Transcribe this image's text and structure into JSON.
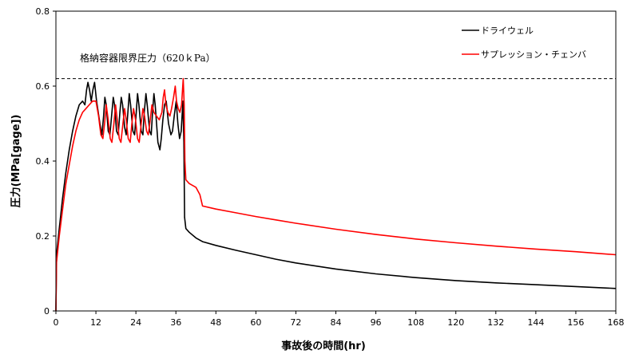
{
  "chart_data": {
    "type": "line",
    "title": "",
    "xlabel": "事故後の時間(hr)",
    "ylabel": "圧力(MPa[gage])",
    "xlim": [
      0,
      168
    ],
    "ylim": [
      0,
      0.8
    ],
    "xticks": [
      0,
      12,
      24,
      36,
      48,
      60,
      72,
      84,
      96,
      108,
      120,
      132,
      144,
      156,
      168
    ],
    "yticks": [
      0,
      0.2,
      0.4,
      0.6,
      0.8
    ],
    "ytick_labels": [
      "0",
      "0.2",
      "0.4",
      "0.6",
      "0.8"
    ],
    "grid": false,
    "legend_position": "top-right",
    "reference_line": {
      "y": 0.62,
      "label": "格納容器限界圧力（620ｋPa）",
      "style": "dashed"
    },
    "series": [
      {
        "name": "ドライウェル",
        "color": "#000000",
        "points": [
          [
            0,
            0.0
          ],
          [
            0.2,
            0.15
          ],
          [
            1,
            0.22
          ],
          [
            2,
            0.3
          ],
          [
            3,
            0.37
          ],
          [
            4,
            0.43
          ],
          [
            5,
            0.48
          ],
          [
            6,
            0.52
          ],
          [
            7,
            0.55
          ],
          [
            8,
            0.56
          ],
          [
            8.7,
            0.55
          ],
          [
            9.2,
            0.59
          ],
          [
            9.6,
            0.61
          ],
          [
            10.1,
            0.59
          ],
          [
            10.6,
            0.56
          ],
          [
            11.1,
            0.59
          ],
          [
            11.6,
            0.61
          ],
          [
            12.2,
            0.56
          ],
          [
            13.2,
            0.5
          ],
          [
            13.8,
            0.47
          ],
          [
            14.3,
            0.52
          ],
          [
            14.7,
            0.57
          ],
          [
            15.1,
            0.55
          ],
          [
            15.7,
            0.48
          ],
          [
            16.2,
            0.47
          ],
          [
            16.7,
            0.52
          ],
          [
            17.2,
            0.57
          ],
          [
            17.6,
            0.55
          ],
          [
            18.2,
            0.48
          ],
          [
            18.7,
            0.47
          ],
          [
            19.2,
            0.53
          ],
          [
            19.6,
            0.57
          ],
          [
            20.0,
            0.55
          ],
          [
            20.6,
            0.49
          ],
          [
            21.1,
            0.47
          ],
          [
            21.6,
            0.53
          ],
          [
            22.0,
            0.58
          ],
          [
            22.4,
            0.55
          ],
          [
            23.1,
            0.48
          ],
          [
            23.6,
            0.47
          ],
          [
            24.1,
            0.53
          ],
          [
            24.5,
            0.58
          ],
          [
            24.9,
            0.55
          ],
          [
            25.6,
            0.48
          ],
          [
            26.1,
            0.47
          ],
          [
            26.5,
            0.53
          ],
          [
            27.0,
            0.58
          ],
          [
            27.4,
            0.55
          ],
          [
            28.1,
            0.48
          ],
          [
            28.6,
            0.47
          ],
          [
            29.0,
            0.53
          ],
          [
            29.4,
            0.58
          ],
          [
            29.8,
            0.55
          ],
          [
            30.6,
            0.45
          ],
          [
            31.2,
            0.43
          ],
          [
            31.6,
            0.46
          ],
          [
            32.1,
            0.51
          ],
          [
            32.6,
            0.55
          ],
          [
            33.1,
            0.56
          ],
          [
            33.8,
            0.5
          ],
          [
            34.5,
            0.47
          ],
          [
            35.0,
            0.48
          ],
          [
            35.5,
            0.52
          ],
          [
            36.1,
            0.56
          ],
          [
            36.6,
            0.5
          ],
          [
            37.1,
            0.46
          ],
          [
            37.6,
            0.48
          ],
          [
            38.1,
            0.56
          ],
          [
            38.4,
            0.45
          ],
          [
            38.6,
            0.25
          ],
          [
            39,
            0.22
          ],
          [
            40,
            0.21
          ],
          [
            42,
            0.195
          ],
          [
            44,
            0.185
          ],
          [
            48,
            0.175
          ],
          [
            54,
            0.162
          ],
          [
            60,
            0.15
          ],
          [
            66,
            0.138
          ],
          [
            72,
            0.128
          ],
          [
            84,
            0.112
          ],
          [
            96,
            0.099
          ],
          [
            108,
            0.089
          ],
          [
            120,
            0.081
          ],
          [
            132,
            0.075
          ],
          [
            144,
            0.07
          ],
          [
            156,
            0.065
          ],
          [
            168,
            0.06
          ]
        ]
      },
      {
        "name": "サプレッション・チェンバ",
        "color": "#ff0000",
        "points": [
          [
            0,
            0.0
          ],
          [
            0.2,
            0.13
          ],
          [
            1,
            0.2
          ],
          [
            2,
            0.27
          ],
          [
            3,
            0.34
          ],
          [
            4,
            0.39
          ],
          [
            5,
            0.44
          ],
          [
            6,
            0.48
          ],
          [
            7,
            0.51
          ],
          [
            8,
            0.53
          ],
          [
            9,
            0.54
          ],
          [
            10,
            0.55
          ],
          [
            11,
            0.56
          ],
          [
            12,
            0.56
          ],
          [
            12.8,
            0.52
          ],
          [
            13.5,
            0.47
          ],
          [
            14.1,
            0.46
          ],
          [
            14.6,
            0.5
          ],
          [
            15.1,
            0.55
          ],
          [
            15.7,
            0.51
          ],
          [
            16.3,
            0.46
          ],
          [
            16.8,
            0.45
          ],
          [
            17.4,
            0.5
          ],
          [
            17.9,
            0.55
          ],
          [
            18.4,
            0.51
          ],
          [
            19.0,
            0.46
          ],
          [
            19.5,
            0.45
          ],
          [
            20.1,
            0.5
          ],
          [
            20.6,
            0.54
          ],
          [
            21.1,
            0.51
          ],
          [
            21.7,
            0.46
          ],
          [
            22.3,
            0.45
          ],
          [
            22.8,
            0.5
          ],
          [
            23.3,
            0.54
          ],
          [
            23.9,
            0.51
          ],
          [
            24.5,
            0.46
          ],
          [
            25.0,
            0.45
          ],
          [
            25.6,
            0.5
          ],
          [
            26.1,
            0.54
          ],
          [
            26.6,
            0.52
          ],
          [
            27.2,
            0.48
          ],
          [
            27.7,
            0.47
          ],
          [
            28.3,
            0.51
          ],
          [
            28.8,
            0.55
          ],
          [
            29.4,
            0.53
          ],
          [
            30.2,
            0.52
          ],
          [
            31.0,
            0.51
          ],
          [
            31.8,
            0.53
          ],
          [
            32.2,
            0.57
          ],
          [
            32.6,
            0.59
          ],
          [
            33.0,
            0.55
          ],
          [
            33.6,
            0.53
          ],
          [
            34.2,
            0.52
          ],
          [
            34.7,
            0.54
          ],
          [
            35.3,
            0.57
          ],
          [
            35.8,
            0.6
          ],
          [
            36.2,
            0.56
          ],
          [
            36.7,
            0.54
          ],
          [
            37.2,
            0.53
          ],
          [
            37.7,
            0.55
          ],
          [
            38.2,
            0.62
          ],
          [
            38.5,
            0.55
          ],
          [
            38.7,
            0.4
          ],
          [
            39,
            0.35
          ],
          [
            40,
            0.34
          ],
          [
            42,
            0.33
          ],
          [
            43.2,
            0.31
          ],
          [
            44,
            0.28
          ],
          [
            48,
            0.272
          ],
          [
            54,
            0.262
          ],
          [
            60,
            0.252
          ],
          [
            66,
            0.243
          ],
          [
            72,
            0.234
          ],
          [
            84,
            0.218
          ],
          [
            96,
            0.204
          ],
          [
            108,
            0.192
          ],
          [
            120,
            0.182
          ],
          [
            132,
            0.173
          ],
          [
            144,
            0.165
          ],
          [
            156,
            0.158
          ],
          [
            168,
            0.15
          ]
        ]
      }
    ]
  }
}
